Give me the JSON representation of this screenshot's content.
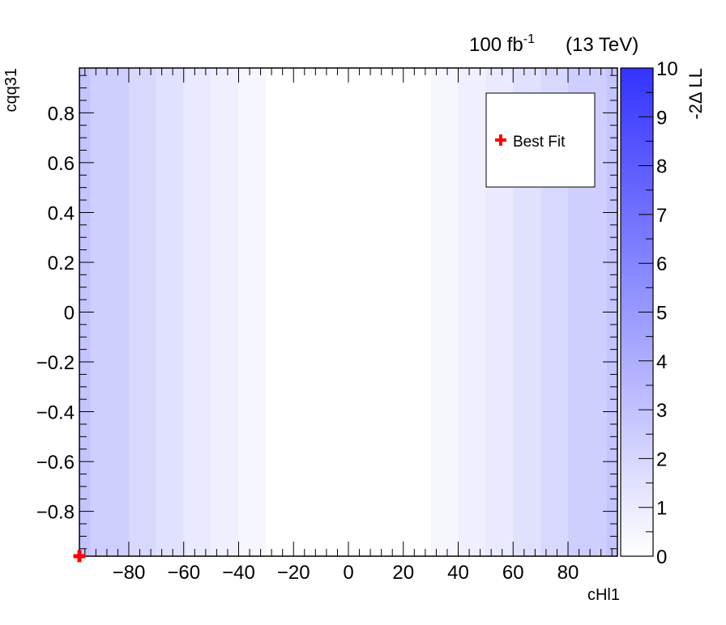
{
  "header": {
    "luminosity": "100 fb",
    "luminosity_exponent": "-1",
    "energy": "(13 TeV)"
  },
  "chart_data": {
    "type": "heatmap",
    "title": "",
    "xlabel": "cHl1",
    "ylabel": "cqq31",
    "zlabel": "-2Δ LL",
    "xlim": [
      -98,
      98
    ],
    "ylim": [
      -0.98,
      0.98
    ],
    "zlim": [
      0,
      10
    ],
    "x_ticks": [
      "−80",
      "−60",
      "−40",
      "−20",
      "0",
      "20",
      "40",
      "60",
      "80"
    ],
    "x_tick_values": [
      -80,
      -60,
      -40,
      -20,
      0,
      20,
      40,
      60,
      80
    ],
    "y_ticks": [
      "−0.8",
      "−0.6",
      "−0.4",
      "−0.2",
      "0",
      "0.2",
      "0.4",
      "0.6",
      "0.8"
    ],
    "y_tick_values": [
      -0.8,
      -0.6,
      -0.4,
      -0.2,
      0,
      0.2,
      0.4,
      0.6,
      0.8
    ],
    "z_ticks": [
      "0",
      "1",
      "2",
      "3",
      "4",
      "5",
      "6",
      "7",
      "8",
      "9",
      "10"
    ],
    "x_bin_edges": [
      -98,
      -94,
      -80,
      -70,
      -60,
      -50,
      -40,
      -30,
      30,
      40,
      50,
      60,
      70,
      80,
      94,
      98
    ],
    "column_values": [
      2.9,
      2.4,
      1.9,
      1.5,
      1.1,
      0.8,
      0.45,
      0.02,
      0.45,
      0.8,
      1.1,
      1.5,
      1.9,
      2.4,
      2.9
    ],
    "colorscale": [
      "#ffffff",
      "#3333ff"
    ],
    "best_fit": {
      "x": -98,
      "y": -0.98,
      "color": "#ff0000"
    },
    "legend": {
      "entries": [
        "Best Fit"
      ],
      "placement": "top-right"
    }
  }
}
